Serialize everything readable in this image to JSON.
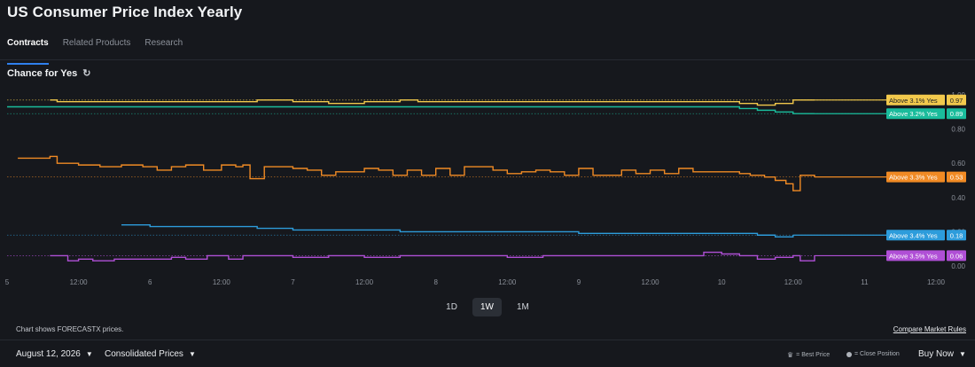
{
  "header": {
    "title": "US Consumer Price Index Yearly"
  },
  "tabs": [
    {
      "label": "Contracts",
      "active": true
    },
    {
      "label": "Related Products",
      "active": false
    },
    {
      "label": "Research",
      "active": false
    }
  ],
  "section": {
    "title": "Chance for Yes",
    "refresh_icon": "refresh-icon"
  },
  "chart_data": {
    "type": "line",
    "x_tick_labels": [
      "5",
      "12:00",
      "6",
      "12:00",
      "7",
      "12:00",
      "8",
      "12:00",
      "9",
      "12:00",
      "10",
      "12:00",
      "11",
      "12:00"
    ],
    "y_tick_labels": [
      "0.00",
      "0.20",
      "0.40",
      "0.60",
      "0.80",
      "1.00"
    ],
    "ylim": [
      0,
      1
    ],
    "grid": false,
    "series": [
      {
        "name": "Above 3.1% Yes",
        "label": "Above 3.1% Yes",
        "value_text": "0.97",
        "color": "#f2c94c",
        "x": [
          0.6,
          0.7,
          1.0,
          1.5,
          2.0,
          2.5,
          3.0,
          3.3,
          3.5,
          4.0,
          4.5,
          5.0,
          5.5,
          5.75,
          6.0,
          6.5,
          7.0,
          7.5,
          8.0,
          8.5,
          9.0,
          9.5,
          10.0,
          10.25,
          10.5,
          10.75,
          11.0,
          11.3
        ],
        "y": [
          0.97,
          0.96,
          0.96,
          0.96,
          0.96,
          0.96,
          0.96,
          0.96,
          0.97,
          0.96,
          0.95,
          0.96,
          0.97,
          0.96,
          0.96,
          0.96,
          0.96,
          0.96,
          0.96,
          0.96,
          0.96,
          0.96,
          0.96,
          0.95,
          0.94,
          0.95,
          0.97,
          0.97
        ]
      },
      {
        "name": "Above 3.2% Yes",
        "label": "Above 3.2% Yes",
        "value_text": "0.89",
        "color": "#1abc9c",
        "x": [
          0.0,
          1.0,
          2.0,
          3.0,
          4.0,
          5.0,
          6.0,
          7.0,
          8.0,
          9.0,
          10.0,
          10.25,
          10.5,
          10.75,
          11.0,
          11.3
        ],
        "y": [
          0.93,
          0.93,
          0.93,
          0.93,
          0.93,
          0.93,
          0.93,
          0.93,
          0.93,
          0.93,
          0.93,
          0.92,
          0.91,
          0.9,
          0.89,
          0.89
        ]
      },
      {
        "name": "Above 3.3% Yes",
        "label": "Above 3.3% Yes",
        "value_text": "0.53",
        "color": "#f08a24",
        "x": [
          0.15,
          0.5,
          0.6,
          0.7,
          1.0,
          1.3,
          1.6,
          1.9,
          2.1,
          2.3,
          2.5,
          2.75,
          3.0,
          3.2,
          3.3,
          3.4,
          3.6,
          3.8,
          4.0,
          4.2,
          4.4,
          4.6,
          4.8,
          5.0,
          5.2,
          5.4,
          5.6,
          5.8,
          6.0,
          6.2,
          6.4,
          6.6,
          6.8,
          7.0,
          7.2,
          7.4,
          7.6,
          7.8,
          8.0,
          8.2,
          8.4,
          8.6,
          8.8,
          9.0,
          9.2,
          9.4,
          9.6,
          9.8,
          10.0,
          10.25,
          10.4,
          10.6,
          10.75,
          10.9,
          11.0,
          11.1,
          11.3
        ],
        "y": [
          0.63,
          0.63,
          0.64,
          0.6,
          0.59,
          0.58,
          0.59,
          0.58,
          0.56,
          0.58,
          0.59,
          0.56,
          0.59,
          0.58,
          0.59,
          0.51,
          0.58,
          0.58,
          0.57,
          0.56,
          0.53,
          0.55,
          0.55,
          0.57,
          0.56,
          0.53,
          0.56,
          0.53,
          0.57,
          0.53,
          0.58,
          0.58,
          0.56,
          0.54,
          0.55,
          0.56,
          0.55,
          0.53,
          0.57,
          0.53,
          0.53,
          0.56,
          0.54,
          0.56,
          0.54,
          0.57,
          0.55,
          0.55,
          0.55,
          0.54,
          0.53,
          0.52,
          0.5,
          0.48,
          0.44,
          0.53,
          0.52
        ]
      },
      {
        "name": "Above 3.4% Yes",
        "label": "Above 3.4% Yes",
        "value_text": "0.18",
        "color": "#2d9cdb",
        "x": [
          1.6,
          1.9,
          2.0,
          2.5,
          3.0,
          3.3,
          3.5,
          4.0,
          4.5,
          5.0,
          5.5,
          6.0,
          6.5,
          7.0,
          7.5,
          8.0,
          8.5,
          9.0,
          9.5,
          10.0,
          10.5,
          10.75,
          11.0
        ],
        "y": [
          0.24,
          0.24,
          0.23,
          0.23,
          0.23,
          0.23,
          0.22,
          0.21,
          0.21,
          0.21,
          0.2,
          0.2,
          0.2,
          0.2,
          0.2,
          0.19,
          0.19,
          0.19,
          0.19,
          0.19,
          0.18,
          0.17,
          0.18
        ]
      },
      {
        "name": "Above 3.5% Yes",
        "label": "Above 3.5% Yes",
        "value_text": "0.06",
        "color": "#b04fd6",
        "x": [
          0.6,
          0.8,
          0.85,
          1.0,
          1.2,
          1.5,
          2.0,
          2.3,
          2.5,
          2.8,
          3.0,
          3.1,
          3.3,
          3.5,
          4.0,
          4.5,
          5.0,
          5.5,
          6.0,
          6.5,
          7.0,
          7.5,
          8.0,
          8.5,
          9.0,
          9.5,
          9.75,
          10.0,
          10.25,
          10.5,
          10.75,
          11.0,
          11.1,
          11.3
        ],
        "y": [
          0.06,
          0.06,
          0.03,
          0.04,
          0.03,
          0.04,
          0.04,
          0.05,
          0.04,
          0.06,
          0.06,
          0.04,
          0.06,
          0.06,
          0.05,
          0.06,
          0.05,
          0.06,
          0.06,
          0.06,
          0.05,
          0.06,
          0.06,
          0.06,
          0.06,
          0.06,
          0.08,
          0.07,
          0.06,
          0.04,
          0.05,
          0.06,
          0.03,
          0.06
        ]
      }
    ]
  },
  "ranges": [
    {
      "label": "1D",
      "active": false
    },
    {
      "label": "1W",
      "active": true
    },
    {
      "label": "1M",
      "active": false
    }
  ],
  "note": "Chart shows FORECASTX prices.",
  "compare_link": "Compare Market Rules",
  "footer": {
    "date_label": "August 12, 2026",
    "price_type": "Consolidated Prices",
    "best_price_label": "= Best Price",
    "close_position_label": "= Close Position",
    "buy_label": "Buy Now"
  }
}
